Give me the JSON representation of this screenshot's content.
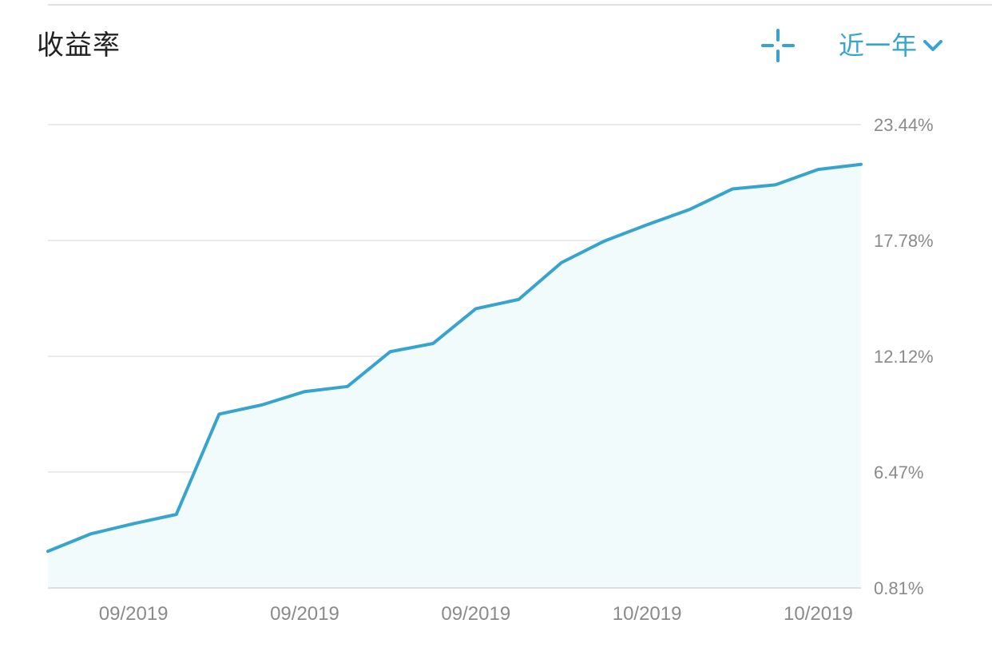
{
  "header": {
    "title": "收益率",
    "range_label": "近一年"
  },
  "icons": {
    "crosshair": "crosshair-icon",
    "chevron": "chevron-down-icon"
  },
  "colors": {
    "accent": "#36a4cd",
    "area_fill": "#f1fbfb",
    "gridline": "#e4e4e4",
    "tick_text": "#8a8a8a",
    "title_text": "#222222"
  },
  "chart_data": {
    "type": "area",
    "y_tick_labels": [
      "23.44%",
      "17.78%",
      "12.12%",
      "6.47%",
      "0.81%"
    ],
    "y_ticks": [
      23.44,
      17.78,
      12.12,
      6.47,
      0.81
    ],
    "ylim": [
      0.81,
      23.44
    ],
    "x_tick_labels": [
      "09/2019",
      "09/2019",
      "09/2019",
      "10/2019",
      "10/2019"
    ],
    "x_tick_index": [
      2,
      6,
      10,
      14,
      18
    ],
    "y_axis_position": "right",
    "grid": true,
    "series": [
      {
        "values": [
          2.6,
          3.45,
          3.95,
          4.4,
          9.3,
          9.75,
          10.4,
          10.65,
          12.35,
          12.75,
          14.45,
          14.9,
          16.7,
          17.75,
          18.55,
          19.3,
          20.3,
          20.5,
          21.25,
          21.5
        ]
      }
    ]
  }
}
